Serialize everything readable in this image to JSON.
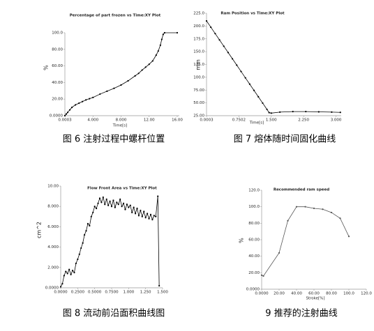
{
  "chart_data": [
    {
      "type": "line",
      "title": "Percentage of part frozen vs Time:XY Plot",
      "x_label": "Time[s]",
      "y_label": "%",
      "caption": "图 6 注射过程中螺杆位置",
      "markers": true,
      "color": "#000000",
      "x": [
        0,
        0.2,
        0.4,
        0.7,
        1,
        1.5,
        2,
        2.5,
        3,
        3.5,
        4,
        5,
        6,
        7,
        8,
        9,
        10,
        10.5,
        11,
        11.5,
        12,
        12.5,
        13,
        13.3,
        13.6,
        13.8,
        14,
        14.2,
        16
      ],
      "values": [
        0,
        2,
        4,
        7,
        10,
        13,
        15,
        17,
        19,
        20.5,
        22,
        26,
        29.5,
        33,
        37,
        42,
        48,
        51,
        55,
        58.5,
        62,
        66,
        73,
        78,
        85,
        92,
        98,
        100,
        100
      ],
      "xlim": [
        0,
        16.3
      ],
      "xticks": [
        0.0003,
        {
          "value": 4,
          "label": "4.000"
        },
        {
          "value": 8,
          "label": "8.000"
        },
        {
          "value": 12,
          "label": "12.00"
        },
        {
          "value": 16,
          "label": "16.00"
        }
      ],
      "ylim": [
        0,
        100
      ],
      "yticks": [
        {
          "value": 0,
          "label": "0.0000"
        },
        {
          "value": 20,
          "label": "20.00"
        },
        {
          "value": 40,
          "label": "40.00"
        },
        {
          "value": 60,
          "label": "60.00"
        },
        {
          "value": 80,
          "label": "80.00"
        },
        {
          "value": 100,
          "label": "100.0"
        }
      ]
    },
    {
      "type": "line",
      "title": "Ram Position vs Time:XY Plot",
      "x_label": "Time[s]",
      "y_label": "mm",
      "caption": "图 7 熔体随时间固化曲线",
      "markers": true,
      "color": "#000000",
      "x": [
        0,
        0.1,
        0.2,
        0.3,
        0.4,
        0.5,
        0.6,
        0.7,
        0.8,
        0.9,
        1.0,
        1.1,
        1.2,
        1.3,
        1.4,
        1.45,
        1.5,
        1.7,
        2.0,
        2.3,
        2.6,
        2.9,
        3.1
      ],
      "values": [
        210,
        197.7,
        185.3,
        173,
        160.6,
        148.3,
        136,
        123.6,
        111.3,
        98.9,
        86.6,
        74.3,
        61.9,
        49.6,
        37.2,
        31,
        30,
        32,
        33,
        33,
        32.5,
        32,
        31.5
      ],
      "xlim": [
        0,
        3.12
      ],
      "xticks": [
        0.0003,
        0.7502,
        {
          "value": 1.5,
          "label": "1.500"
        },
        {
          "value": 2.25,
          "label": "2.250"
        },
        {
          "value": 3,
          "label": "3.000"
        }
      ],
      "ylim": [
        25,
        225
      ],
      "yticks": [
        {
          "value": 25,
          "label": "25.00"
        },
        {
          "value": 50,
          "label": "50.00"
        },
        {
          "value": 75,
          "label": "75.00"
        },
        {
          "value": 100,
          "label": "100.0"
        },
        {
          "value": 125,
          "label": "125.0"
        },
        {
          "value": 150,
          "label": "150.0"
        },
        {
          "value": 175,
          "label": "175.0"
        },
        {
          "value": 200,
          "label": "200.0"
        },
        {
          "value": 225,
          "label": "225.0"
        }
      ]
    },
    {
      "type": "line",
      "title": "Flow Front Area vs Time:XY Plot",
      "y_label": "cm^2",
      "caption": "图 8 流动前沿面积曲线图",
      "markers": true,
      "color": "#000000",
      "x": [
        0,
        0.025,
        0.05,
        0.075,
        0.1,
        0.125,
        0.15,
        0.175,
        0.2,
        0.225,
        0.25,
        0.275,
        0.3,
        0.325,
        0.35,
        0.375,
        0.4,
        0.425,
        0.45,
        0.475,
        0.5,
        0.525,
        0.55,
        0.575,
        0.6,
        0.625,
        0.65,
        0.675,
        0.7,
        0.725,
        0.75,
        0.775,
        0.8,
        0.825,
        0.85,
        0.875,
        0.9,
        0.925,
        0.95,
        0.975,
        1.0,
        1.025,
        1.05,
        1.075,
        1.1,
        1.125,
        1.15,
        1.175,
        1.2,
        1.225,
        1.25,
        1.275,
        1.3,
        1.325,
        1.35,
        1.375,
        1.4,
        1.43,
        1.45
      ],
      "values": [
        0.1,
        0.4,
        1.2,
        1.6,
        1.4,
        1.8,
        1.3,
        1.7,
        1.5,
        2.4,
        2.8,
        3.3,
        3.9,
        4.4,
        5.2,
        5.6,
        6.3,
        6.1,
        7.0,
        7.4,
        8.0,
        7.8,
        8.3,
        8.8,
        8.4,
        8.9,
        8.2,
        8.7,
        8.1,
        8.5,
        8.0,
        8.6,
        7.9,
        8.4,
        8.2,
        8.7,
        8.0,
        8.3,
        7.7,
        8.2,
        7.9,
        8.1,
        7.4,
        7.9,
        7.3,
        7.8,
        7.1,
        7.6,
        7.0,
        7.5,
        6.9,
        7.3,
        6.8,
        7.2,
        6.7,
        7.1,
        7.0,
        9.0,
        0.2
      ],
      "xlim": [
        0,
        1.5
      ],
      "xticks": [
        {
          "value": 0,
          "label": "0.0000"
        },
        {
          "value": 0.25,
          "label": "0.2500"
        },
        {
          "value": 0.5,
          "label": "0.5000"
        },
        {
          "value": 0.75,
          "label": "0.7500"
        },
        {
          "value": 1,
          "label": "1.000"
        },
        {
          "value": 1.25,
          "label": "1.250"
        },
        {
          "value": 1.5,
          "label": "1.500"
        }
      ],
      "ylim": [
        0,
        10
      ],
      "yticks": [
        {
          "value": 0,
          "label": "0.0000"
        },
        {
          "value": 2,
          "label": "2.000"
        },
        {
          "value": 4,
          "label": "4.000"
        },
        {
          "value": 6,
          "label": "6.000"
        },
        {
          "value": 8,
          "label": "8.000"
        },
        {
          "value": 10,
          "label": "10.00"
        }
      ]
    },
    {
      "type": "line",
      "title": "Recommended ram speed",
      "x_label": "Stroke[%]",
      "y_label": "%",
      "caption": "9 推荐的注射曲线",
      "markers": true,
      "color": "#555555",
      "x": [
        0,
        2,
        20,
        30,
        40,
        50,
        60,
        70,
        80,
        90,
        100
      ],
      "values": [
        17,
        16,
        44,
        83,
        100,
        100,
        98,
        97,
        93,
        86,
        64
      ],
      "xlim": [
        0,
        120
      ],
      "xticks": [
        {
          "value": 0,
          "label": "0.0000"
        },
        {
          "value": 20,
          "label": "20.00"
        },
        {
          "value": 40,
          "label": "40.00"
        },
        {
          "value": 60,
          "label": "60.00"
        },
        {
          "value": 80,
          "label": "80.00"
        },
        {
          "value": 100,
          "label": "100.0"
        },
        {
          "value": 120,
          "label": "120.0"
        }
      ],
      "ylim": [
        0,
        120
      ],
      "yticks": [
        {
          "value": 0,
          "label": "0.0000"
        },
        {
          "value": 20,
          "label": "20.00"
        },
        {
          "value": 40,
          "label": "40.00"
        },
        {
          "value": 60,
          "label": "60.00"
        },
        {
          "value": 80,
          "label": "80.00"
        },
        {
          "value": 100,
          "label": "100.0"
        },
        {
          "value": 120,
          "label": "120.0"
        }
      ]
    }
  ]
}
